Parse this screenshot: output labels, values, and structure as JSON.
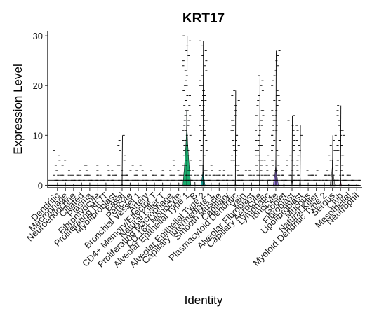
{
  "chart_data": {
    "type": "violin",
    "title": "KRT17",
    "xlabel": "Identity",
    "ylabel": "Expression Level",
    "ylim": [
      -0.5,
      31
    ],
    "yticks": [
      0,
      10,
      20,
      30
    ],
    "grid": false,
    "legend": "none",
    "categories": [
      "Dendritic",
      "Macrophage",
      "Neuroendocrine",
      "Ciliated",
      "Plasma",
      "Fibromyocyte",
      "Basal",
      "Proliferating NK/T",
      "Myofibroblast",
      "Bronchial Vessel 1",
      "Pericyte",
      "Artery",
      "CD4+ Memory/Effector T",
      "Proliferating Macrophage",
      "Natural Killer T",
      "CD 16+ Monocyte",
      "Alveolar Epithelial Type 1",
      "B",
      "Alveolar Epithelial Type 2",
      "Capillary Intermediate 1",
      "Capillary",
      "Plasmacytoid Dendritic",
      "Smooth Muscle",
      "Alveolar Fibroblast",
      "Vein",
      "Capillary Aerocyte",
      "Lymphatic",
      "Ionocyte",
      "Fibroblast",
      "Goblet",
      "Lipofibroblast",
      "Natural Killer",
      "Mucous",
      "Myeloid Dendritic Type 2",
      "Club",
      "Serous",
      "Mesothelial",
      "Neutrophil"
    ],
    "label_order": [
      "Dendritic",
      "Macrophage",
      "Neuroendocrine",
      "Ciliated",
      "Plasma",
      "Fibromyocyte",
      "Basal",
      "Proliferating NK/T",
      "Myofibroblast",
      "Bronchial Vessel 1",
      "Pericyte",
      "Artery",
      "CD4+ Memory/Effector T",
      "Proliferating Macrophage",
      "Natural Killer T",
      "CD 16+ Monocyte",
      "Alveolar Epithelial Type 1",
      "B",
      "Alveolar Epithelial Type 2",
      "Capillary Intermediate 1",
      "Capillary",
      "Plasmacytoid Dendritic",
      "Smooth Muscle",
      "Alveolar Fibroblast",
      "Vein",
      "Capillary Aerocyte",
      "Lymphatic",
      "Ionocyte",
      "Fibroblast",
      "Goblet",
      "Lipofibroblast",
      "Natural Killer",
      "Mucous",
      "Myeloid Dendritic Type 2",
      "Club",
      "Serous",
      "Mesothelial",
      "Neutrophil"
    ],
    "display_labels": [
      "Dendritic",
      "Macrophage",
      "Neuroendocrine",
      "Ciliated",
      "Plasma",
      "Fibromyocyte",
      "Proliferating NK/T",
      "Myofibroblast",
      "Basal",
      "Pericyte",
      "Bronchial Vessel 1",
      "Artery",
      "CD4+ Memory/Effector T",
      "Natural Killer T",
      "Proliferating Macrophage",
      "CD 16+ Monocyte",
      "Alveolar Epithelial Type 1",
      "B",
      "Alveolar Epithelial Type 2",
      "Capillary Intermediate 1",
      "Smooth Muscle",
      "Capillary",
      "Plasmacytoid Dendritic",
      "Vein",
      "Alveolar Fibroblast",
      "Capillary Aerocyte",
      "Lymphatic",
      "Ionocyte",
      "Goblet",
      "Fibroblast",
      "Lipofibroblast",
      "Mucous",
      "Natural Killer",
      "Myeloid Dendritic Type 2",
      "Serous",
      "Club",
      "Mesothelial",
      "Neutrophil"
    ],
    "max_values": [
      7,
      5,
      2,
      4,
      4,
      4,
      4,
      4,
      10,
      4,
      4,
      3,
      3,
      3,
      5,
      3,
      30,
      3,
      29,
      4,
      3,
      3,
      19,
      3,
      3,
      22,
      6,
      27,
      5,
      14,
      12,
      3,
      3,
      3,
      10,
      16,
      2,
      1
    ],
    "violin_widths": [
      0.15,
      0.15,
      0.1,
      0.15,
      0.15,
      0.15,
      0.15,
      0.15,
      0.2,
      0.15,
      0.15,
      0.15,
      0.15,
      0.15,
      0.15,
      0.15,
      1.0,
      0.2,
      0.55,
      0.15,
      0.15,
      0.15,
      0.2,
      0.15,
      0.15,
      0.2,
      0.2,
      0.7,
      0.2,
      0.35,
      0.3,
      0.15,
      0.15,
      0.15,
      0.65,
      0.3,
      0.1,
      0.1
    ],
    "violin_tops": [
      0.5,
      0.5,
      0.3,
      0.5,
      0.5,
      0.5,
      0.5,
      0.5,
      0.8,
      0.5,
      0.5,
      0.5,
      0.5,
      0.5,
      0.5,
      0.5,
      15,
      0.6,
      4,
      0.5,
      0.5,
      0.5,
      0.8,
      0.5,
      0.5,
      0.8,
      0.8,
      5,
      0.8,
      2,
      1.5,
      0.5,
      0.5,
      0.5,
      5,
      1.5,
      0.3,
      0.3
    ],
    "colors": {
      "Alveolar Epithelial Type 1": "#1aae6f",
      "Alveolar Epithelial Type 2": "#17b3a6",
      "Ionocyte": "#9b7de0",
      "Club": "#ef5b8b",
      "default": "#c8c8c8"
    }
  }
}
